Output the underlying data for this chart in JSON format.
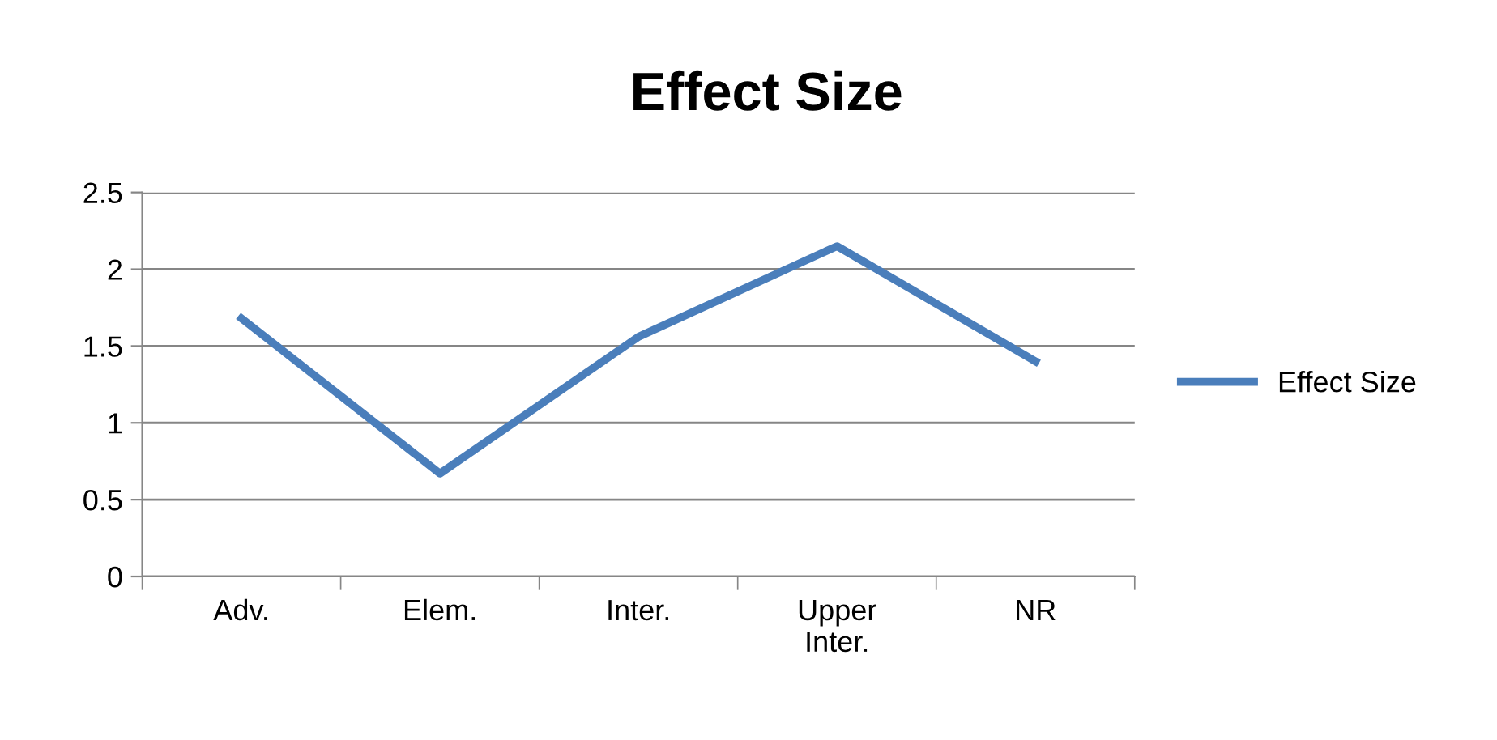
{
  "chart_data": {
    "type": "line",
    "title": "Effect Size",
    "categories": [
      "Adv.",
      "Elem.",
      "Inter.",
      "Upper\nInter.",
      "NR"
    ],
    "series": [
      {
        "name": "Effect Size",
        "color": "#4a7ebb",
        "values": [
          1.68,
          0.67,
          1.56,
          2.15,
          1.4
        ]
      }
    ],
    "ylim": [
      0,
      2.5
    ],
    "yticks": [
      0,
      0.5,
      1,
      1.5,
      2,
      2.5
    ],
    "grid": "y",
    "legend": "right",
    "marker": "none",
    "line_style": "solid"
  }
}
